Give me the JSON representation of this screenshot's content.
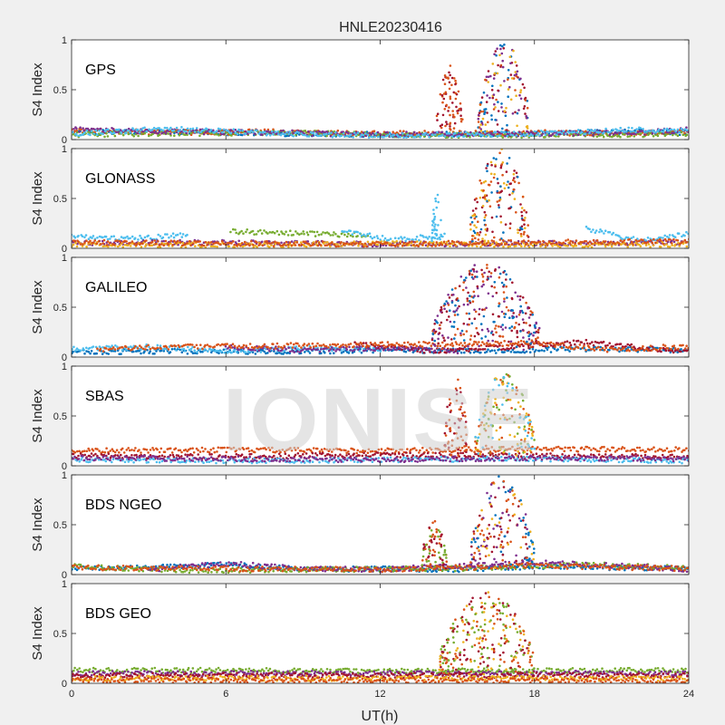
{
  "figure": {
    "title": "HNLE20230416",
    "xlabel": "UT(h)",
    "watermark": "IONISE",
    "xticks": [
      "0",
      "6",
      "12",
      "18",
      "24"
    ],
    "yticks": [
      "0",
      "0.5",
      "1"
    ],
    "background": "#f0f0f0",
    "axes_bg": "#ffffff",
    "palette": [
      "#0072BD",
      "#D95319",
      "#EDB120",
      "#7E2F8E",
      "#77AC30",
      "#4DBEEE",
      "#A2142F"
    ]
  },
  "chart_data": [
    {
      "type": "scatter",
      "label": "GPS",
      "ylabel": "S4 Index",
      "xlim": [
        0,
        24
      ],
      "ylim": [
        0,
        1
      ],
      "grid": false,
      "base_level": 0.07,
      "baseline_series": [
        {
          "color": "#0072BD",
          "x": [
            0,
            4,
            8,
            12,
            18,
            22,
            24
          ],
          "y": [
            0.07,
            0.08,
            0.06,
            0.05,
            0.06,
            0.08,
            0.07
          ]
        },
        {
          "color": "#D95319",
          "x": [
            0,
            4,
            8,
            12,
            18,
            22,
            24
          ],
          "y": [
            0.09,
            0.07,
            0.08,
            0.06,
            0.07,
            0.06,
            0.09
          ]
        },
        {
          "color": "#77AC30",
          "x": [
            0,
            4,
            8,
            12,
            18,
            22,
            24
          ],
          "y": [
            0.05,
            0.06,
            0.07,
            0.05,
            0.04,
            0.05,
            0.06
          ]
        },
        {
          "color": "#7E2F8E",
          "x": [
            0,
            4,
            8,
            12,
            18,
            22,
            24
          ],
          "y": [
            0.1,
            0.08,
            0.07,
            0.05,
            0.06,
            0.07,
            0.1
          ]
        },
        {
          "color": "#4DBEEE",
          "x": [
            0,
            4,
            8,
            12,
            18,
            22,
            24
          ],
          "y": [
            0.06,
            0.11,
            0.06,
            0.04,
            0.06,
            0.1,
            0.08
          ]
        }
      ],
      "bursts": [
        {
          "x_range": [
            14.2,
            15.2
          ],
          "y_max": 0.75,
          "colors": [
            "#D95319",
            "#A2142F"
          ]
        },
        {
          "x_range": [
            15.8,
            17.8
          ],
          "y_max": 1.0,
          "colors": [
            "#D95319",
            "#A2142F",
            "#EDB120",
            "#0072BD",
            "#7E2F8E"
          ]
        }
      ]
    },
    {
      "type": "scatter",
      "label": "GLONASS",
      "ylabel": "S4 Index",
      "xlim": [
        0,
        24
      ],
      "ylim": [
        0,
        1
      ],
      "grid": false,
      "base_level": 0.06,
      "baseline_series": [
        {
          "color": "#4DBEEE",
          "x": [
            0,
            2,
            4.5
          ],
          "y": [
            0.13,
            0.09,
            0.14
          ]
        },
        {
          "color": "#77AC30",
          "x": [
            6.2,
            9,
            11.5
          ],
          "y": [
            0.17,
            0.15,
            0.13
          ]
        },
        {
          "color": "#4DBEEE",
          "x": [
            10.5,
            12.5,
            14.5
          ],
          "y": [
            0.18,
            0.08,
            0.13
          ]
        },
        {
          "color": "#4DBEEE",
          "x": [
            20,
            22,
            24
          ],
          "y": [
            0.2,
            0.08,
            0.14
          ]
        },
        {
          "color": "#7E2F8E",
          "x": [
            0,
            6,
            12,
            18,
            24
          ],
          "y": [
            0.05,
            0.06,
            0.04,
            0.05,
            0.06
          ]
        },
        {
          "color": "#EDB120",
          "x": [
            0,
            6,
            12,
            18,
            24
          ],
          "y": [
            0.04,
            0.03,
            0.05,
            0.03,
            0.04
          ]
        },
        {
          "color": "#D95319",
          "x": [
            0,
            6,
            12,
            18,
            24
          ],
          "y": [
            0.06,
            0.05,
            0.04,
            0.06,
            0.07
          ]
        }
      ],
      "bursts": [
        {
          "x_range": [
            14.0,
            14.4
          ],
          "y_max": 0.55,
          "colors": [
            "#4DBEEE"
          ]
        },
        {
          "x_range": [
            15.5,
            17.8
          ],
          "y_max": 1.0,
          "colors": [
            "#A2142F",
            "#D95319",
            "#0072BD",
            "#EDB120"
          ]
        }
      ]
    },
    {
      "type": "scatter",
      "label": "GALILEO",
      "ylabel": "S4 Index",
      "xlim": [
        0,
        24
      ],
      "ylim": [
        0,
        1
      ],
      "grid": false,
      "base_level": 0.07,
      "baseline_series": [
        {
          "color": "#0072BD",
          "x": [
            0,
            4,
            8,
            12,
            16,
            20,
            24
          ],
          "y": [
            0.05,
            0.06,
            0.05,
            0.07,
            0.06,
            0.08,
            0.07
          ]
        },
        {
          "color": "#4DBEEE",
          "x": [
            0,
            3,
            6,
            9,
            12
          ],
          "y": [
            0.08,
            0.1,
            0.06,
            0.09,
            0.08
          ]
        },
        {
          "color": "#A2142F",
          "x": [
            11,
            14,
            17,
            20,
            24
          ],
          "y": [
            0.13,
            0.06,
            0.1,
            0.15,
            0.05
          ]
        },
        {
          "color": "#7E2F8E",
          "x": [
            6,
            9,
            12,
            15
          ],
          "y": [
            0.1,
            0.07,
            0.09,
            0.06
          ]
        },
        {
          "color": "#D95319",
          "x": [
            1,
            3,
            18,
            21,
            24
          ],
          "y": [
            0.07,
            0.1,
            0.14,
            0.07,
            0.11
          ]
        }
      ],
      "bursts": [
        {
          "x_range": [
            14.0,
            18.2
          ],
          "y_max": 0.95,
          "colors": [
            "#7E2F8E",
            "#0072BD",
            "#D95319",
            "#A2142F"
          ]
        }
      ]
    },
    {
      "type": "scatter",
      "label": "SBAS",
      "ylabel": "S4 Index",
      "xlim": [
        0,
        24
      ],
      "ylim": [
        0,
        1
      ],
      "grid": false,
      "base_level": 0.1,
      "baseline_series": [
        {
          "color": "#D95319",
          "x": [
            0,
            6,
            12,
            18,
            24
          ],
          "y": [
            0.15,
            0.16,
            0.15,
            0.17,
            0.16
          ]
        },
        {
          "color": "#A2142F",
          "x": [
            0,
            6,
            12,
            18,
            24
          ],
          "y": [
            0.1,
            0.09,
            0.11,
            0.1,
            0.09
          ]
        },
        {
          "color": "#4DBEEE",
          "x": [
            0,
            6,
            12,
            18,
            24
          ],
          "y": [
            0.06,
            0.05,
            0.06,
            0.07,
            0.05
          ]
        },
        {
          "color": "#7E2F8E",
          "x": [
            0,
            6,
            12,
            18,
            24
          ],
          "y": [
            0.08,
            0.07,
            0.06,
            0.08,
            0.07
          ]
        }
      ],
      "bursts": [
        {
          "x_range": [
            14.5,
            15.4
          ],
          "y_max": 0.95,
          "colors": [
            "#D95319",
            "#A2142F"
          ]
        },
        {
          "x_range": [
            15.7,
            18.0
          ],
          "y_max": 0.95,
          "colors": [
            "#4DBEEE",
            "#77AC30",
            "#EDB120",
            "#D95319"
          ]
        }
      ]
    },
    {
      "type": "scatter",
      "label": "BDS NGEO",
      "ylabel": "S4 Index",
      "xlim": [
        0,
        24
      ],
      "ylim": [
        0,
        1
      ],
      "grid": false,
      "base_level": 0.06,
      "baseline_series": [
        {
          "color": "#0072BD",
          "x": [
            0,
            3,
            6,
            9,
            12,
            15,
            18,
            21,
            24
          ],
          "y": [
            0.06,
            0.07,
            0.1,
            0.05,
            0.06,
            0.05,
            0.08,
            0.07,
            0.06
          ]
        },
        {
          "color": "#77AC30",
          "x": [
            0,
            5,
            10,
            15,
            20,
            24
          ],
          "y": [
            0.08,
            0.04,
            0.05,
            0.06,
            0.1,
            0.07
          ]
        },
        {
          "color": "#7E2F8E",
          "x": [
            3,
            6,
            9,
            12,
            18,
            22,
            24
          ],
          "y": [
            0.05,
            0.11,
            0.06,
            0.05,
            0.12,
            0.08,
            0.05
          ]
        },
        {
          "color": "#D95319",
          "x": [
            0,
            6,
            12,
            18,
            24
          ],
          "y": [
            0.07,
            0.06,
            0.05,
            0.09,
            0.06
          ]
        }
      ],
      "bursts": [
        {
          "x_range": [
            13.6,
            14.6
          ],
          "y_max": 0.55,
          "colors": [
            "#A2142F",
            "#77AC30",
            "#D95319"
          ]
        },
        {
          "x_range": [
            15.5,
            18.0
          ],
          "y_max": 1.0,
          "colors": [
            "#A2142F",
            "#D95319",
            "#7E2F8E",
            "#EDB120",
            "#0072BD"
          ]
        }
      ]
    },
    {
      "type": "scatter",
      "label": "BDS GEO",
      "ylabel": "S4 Index",
      "xlim": [
        0,
        24
      ],
      "ylim": [
        0,
        1
      ],
      "grid": false,
      "base_level": 0.09,
      "baseline_series": [
        {
          "color": "#77AC30",
          "x": [
            0,
            6,
            12,
            18,
            24
          ],
          "y": [
            0.13,
            0.13,
            0.12,
            0.13,
            0.13
          ]
        },
        {
          "color": "#7E2F8E",
          "x": [
            0,
            6,
            12,
            18,
            24
          ],
          "y": [
            0.1,
            0.1,
            0.1,
            0.1,
            0.1
          ]
        },
        {
          "color": "#A2142F",
          "x": [
            0,
            6,
            12,
            18,
            24
          ],
          "y": [
            0.08,
            0.08,
            0.08,
            0.08,
            0.08
          ]
        },
        {
          "color": "#EDB120",
          "x": [
            0,
            6,
            12,
            18,
            24
          ],
          "y": [
            0.05,
            0.05,
            0.05,
            0.05,
            0.05
          ]
        },
        {
          "color": "#D95319",
          "x": [
            0,
            6,
            12,
            18,
            24
          ],
          "y": [
            0.03,
            0.03,
            0.03,
            0.03,
            0.03
          ]
        }
      ],
      "bursts": [
        {
          "x_range": [
            14.3,
            18.0
          ],
          "y_max": 0.92,
          "colors": [
            "#77AC30",
            "#EDB120",
            "#D95319",
            "#A2142F"
          ]
        }
      ]
    }
  ]
}
